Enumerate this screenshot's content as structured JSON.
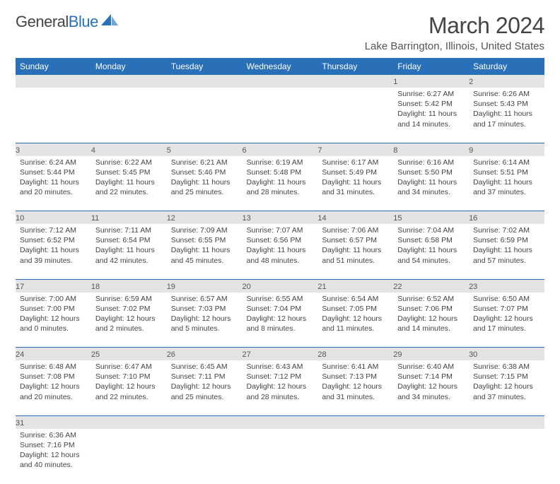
{
  "logo": {
    "word1": "General",
    "word2": "Blue"
  },
  "title": "March 2024",
  "location": "Lake Barrington, Illinois, United States",
  "day_headers": [
    "Sunday",
    "Monday",
    "Tuesday",
    "Wednesday",
    "Thursday",
    "Friday",
    "Saturday"
  ],
  "header_bg": "#2a70b8",
  "daynum_bg": "#e4e4e4",
  "border_color": "#2a70b8",
  "weeks": [
    [
      null,
      null,
      null,
      null,
      null,
      {
        "n": "1",
        "sr": "Sunrise: 6:27 AM",
        "ss": "Sunset: 5:42 PM",
        "dl": "Daylight: 11 hours and 14 minutes."
      },
      {
        "n": "2",
        "sr": "Sunrise: 6:26 AM",
        "ss": "Sunset: 5:43 PM",
        "dl": "Daylight: 11 hours and 17 minutes."
      }
    ],
    [
      {
        "n": "3",
        "sr": "Sunrise: 6:24 AM",
        "ss": "Sunset: 5:44 PM",
        "dl": "Daylight: 11 hours and 20 minutes."
      },
      {
        "n": "4",
        "sr": "Sunrise: 6:22 AM",
        "ss": "Sunset: 5:45 PM",
        "dl": "Daylight: 11 hours and 22 minutes."
      },
      {
        "n": "5",
        "sr": "Sunrise: 6:21 AM",
        "ss": "Sunset: 5:46 PM",
        "dl": "Daylight: 11 hours and 25 minutes."
      },
      {
        "n": "6",
        "sr": "Sunrise: 6:19 AM",
        "ss": "Sunset: 5:48 PM",
        "dl": "Daylight: 11 hours and 28 minutes."
      },
      {
        "n": "7",
        "sr": "Sunrise: 6:17 AM",
        "ss": "Sunset: 5:49 PM",
        "dl": "Daylight: 11 hours and 31 minutes."
      },
      {
        "n": "8",
        "sr": "Sunrise: 6:16 AM",
        "ss": "Sunset: 5:50 PM",
        "dl": "Daylight: 11 hours and 34 minutes."
      },
      {
        "n": "9",
        "sr": "Sunrise: 6:14 AM",
        "ss": "Sunset: 5:51 PM",
        "dl": "Daylight: 11 hours and 37 minutes."
      }
    ],
    [
      {
        "n": "10",
        "sr": "Sunrise: 7:12 AM",
        "ss": "Sunset: 6:52 PM",
        "dl": "Daylight: 11 hours and 39 minutes."
      },
      {
        "n": "11",
        "sr": "Sunrise: 7:11 AM",
        "ss": "Sunset: 6:54 PM",
        "dl": "Daylight: 11 hours and 42 minutes."
      },
      {
        "n": "12",
        "sr": "Sunrise: 7:09 AM",
        "ss": "Sunset: 6:55 PM",
        "dl": "Daylight: 11 hours and 45 minutes."
      },
      {
        "n": "13",
        "sr": "Sunrise: 7:07 AM",
        "ss": "Sunset: 6:56 PM",
        "dl": "Daylight: 11 hours and 48 minutes."
      },
      {
        "n": "14",
        "sr": "Sunrise: 7:06 AM",
        "ss": "Sunset: 6:57 PM",
        "dl": "Daylight: 11 hours and 51 minutes."
      },
      {
        "n": "15",
        "sr": "Sunrise: 7:04 AM",
        "ss": "Sunset: 6:58 PM",
        "dl": "Daylight: 11 hours and 54 minutes."
      },
      {
        "n": "16",
        "sr": "Sunrise: 7:02 AM",
        "ss": "Sunset: 6:59 PM",
        "dl": "Daylight: 11 hours and 57 minutes."
      }
    ],
    [
      {
        "n": "17",
        "sr": "Sunrise: 7:00 AM",
        "ss": "Sunset: 7:00 PM",
        "dl": "Daylight: 12 hours and 0 minutes."
      },
      {
        "n": "18",
        "sr": "Sunrise: 6:59 AM",
        "ss": "Sunset: 7:02 PM",
        "dl": "Daylight: 12 hours and 2 minutes."
      },
      {
        "n": "19",
        "sr": "Sunrise: 6:57 AM",
        "ss": "Sunset: 7:03 PM",
        "dl": "Daylight: 12 hours and 5 minutes."
      },
      {
        "n": "20",
        "sr": "Sunrise: 6:55 AM",
        "ss": "Sunset: 7:04 PM",
        "dl": "Daylight: 12 hours and 8 minutes."
      },
      {
        "n": "21",
        "sr": "Sunrise: 6:54 AM",
        "ss": "Sunset: 7:05 PM",
        "dl": "Daylight: 12 hours and 11 minutes."
      },
      {
        "n": "22",
        "sr": "Sunrise: 6:52 AM",
        "ss": "Sunset: 7:06 PM",
        "dl": "Daylight: 12 hours and 14 minutes."
      },
      {
        "n": "23",
        "sr": "Sunrise: 6:50 AM",
        "ss": "Sunset: 7:07 PM",
        "dl": "Daylight: 12 hours and 17 minutes."
      }
    ],
    [
      {
        "n": "24",
        "sr": "Sunrise: 6:48 AM",
        "ss": "Sunset: 7:08 PM",
        "dl": "Daylight: 12 hours and 20 minutes."
      },
      {
        "n": "25",
        "sr": "Sunrise: 6:47 AM",
        "ss": "Sunset: 7:10 PM",
        "dl": "Daylight: 12 hours and 22 minutes."
      },
      {
        "n": "26",
        "sr": "Sunrise: 6:45 AM",
        "ss": "Sunset: 7:11 PM",
        "dl": "Daylight: 12 hours and 25 minutes."
      },
      {
        "n": "27",
        "sr": "Sunrise: 6:43 AM",
        "ss": "Sunset: 7:12 PM",
        "dl": "Daylight: 12 hours and 28 minutes."
      },
      {
        "n": "28",
        "sr": "Sunrise: 6:41 AM",
        "ss": "Sunset: 7:13 PM",
        "dl": "Daylight: 12 hours and 31 minutes."
      },
      {
        "n": "29",
        "sr": "Sunrise: 6:40 AM",
        "ss": "Sunset: 7:14 PM",
        "dl": "Daylight: 12 hours and 34 minutes."
      },
      {
        "n": "30",
        "sr": "Sunrise: 6:38 AM",
        "ss": "Sunset: 7:15 PM",
        "dl": "Daylight: 12 hours and 37 minutes."
      }
    ],
    [
      {
        "n": "31",
        "sr": "Sunrise: 6:36 AM",
        "ss": "Sunset: 7:16 PM",
        "dl": "Daylight: 12 hours and 40 minutes."
      },
      null,
      null,
      null,
      null,
      null,
      null
    ]
  ]
}
